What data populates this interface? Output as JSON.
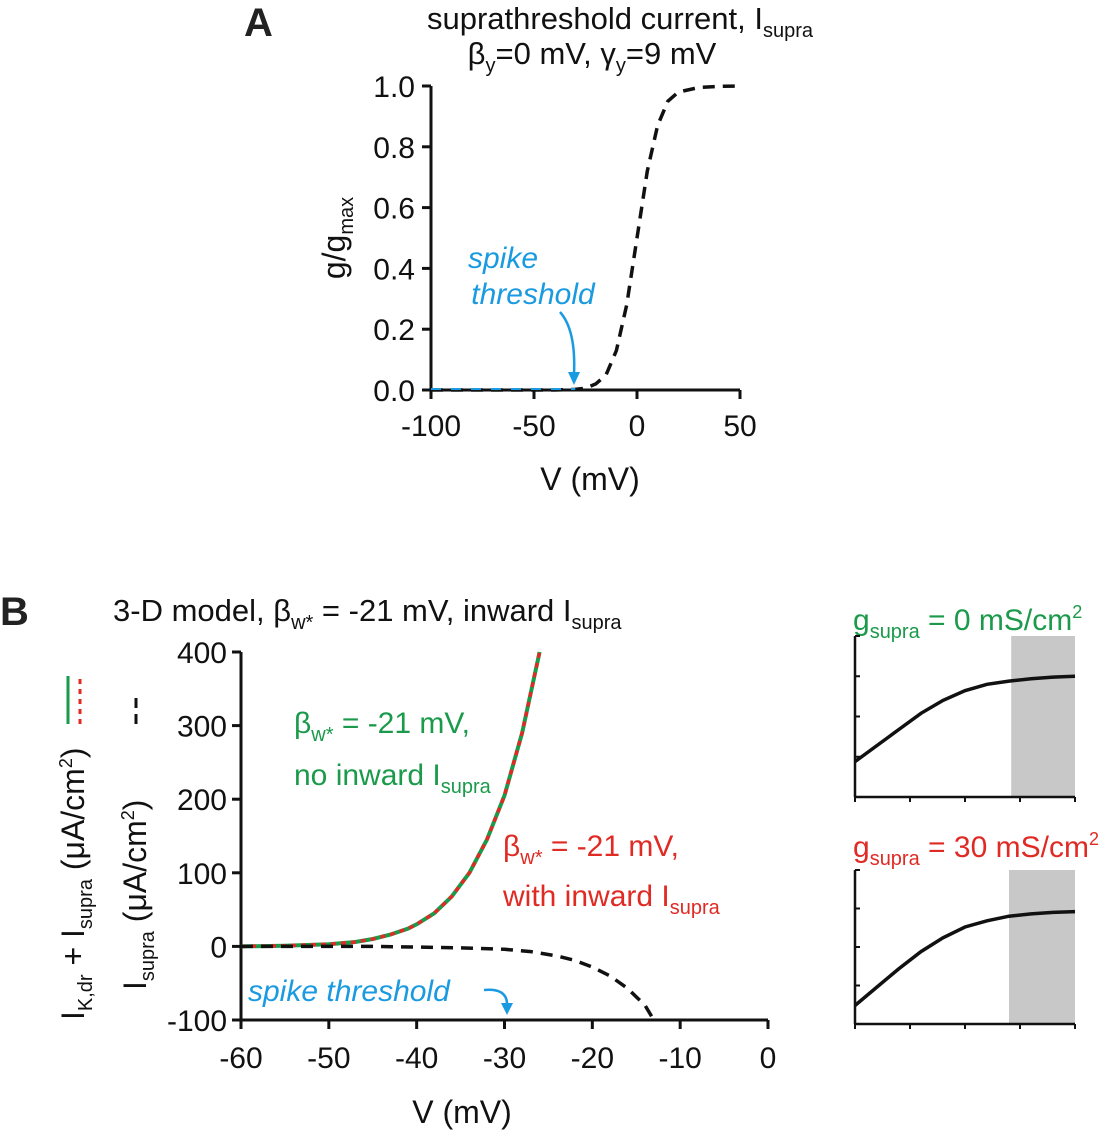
{
  "colors": {
    "blue": "#1a9ae0",
    "green": "#1a9a4a",
    "red": "#e02a24",
    "black": "#111111",
    "gray": "#c8c8c8"
  },
  "panelA": {
    "letter": "A",
    "title_line1": "suprathreshold current, I",
    "title_line1_sub": "supra",
    "title_line2_beta": "β",
    "title_line2_beta_sub": "y",
    "title_line2_mid": "=0 mV, ",
    "title_line2_gamma": "γ",
    "title_line2_gamma_sub": "y",
    "title_line2_end": "=9 mV",
    "ylabel_main": "g/g",
    "ylabel_sub": "max",
    "xlabel": "V (mV)",
    "annotation_line1": "spike",
    "annotation_line2": "threshold",
    "annotation_at_v": -30
  },
  "panelB": {
    "letter": "B",
    "title_main": "3-D model, ",
    "title_beta": "β",
    "title_beta_sub": "w*",
    "title_mid": " = -21 mV, inward I",
    "title_sub": "supra",
    "ylabel1_a": "I",
    "ylabel1_a_sub": "K,dr",
    "ylabel1_b": " + I",
    "ylabel1_b_sub": "supra",
    "ylabel1_c": " (μA/cm",
    "ylabel1_c_sup": "2",
    "ylabel1_d": ")",
    "ylabel2_a": "I",
    "ylabel2_a_sub": "supra",
    "ylabel2_b": " (μA/cm",
    "ylabel2_b_sup": "2",
    "ylabel2_c": ")",
    "xlabel": "V (mV)",
    "green_ann_beta": "β",
    "green_ann_beta_sub": "w*",
    "green_ann_line1_rest": " = -21 mV,",
    "green_ann_line2": "no inward I",
    "green_ann_line2_sub": "supra",
    "red_ann_beta": "β",
    "red_ann_beta_sub": "w*",
    "red_ann_line1_rest": " = -21 mV,",
    "red_ann_line2": "with inward I",
    "red_ann_line2_sub": "supra",
    "spike_label": "spike threshold",
    "spike_at_v": -30
  },
  "insets": {
    "top_label_g": "g",
    "top_label_sub": "supra",
    "top_label_rest": " = 0 mS/cm",
    "top_label_sup": "2",
    "bottom_label_g": "g",
    "bottom_label_sub": "supra",
    "bottom_label_rest": " = 30 mS/cm",
    "bottom_label_sup": "2"
  },
  "chart_data": [
    {
      "type": "line",
      "panel": "A",
      "title": "suprathreshold current, I_supra; β_y=0 mV, γ_y=9 mV",
      "xlabel": "V (mV)",
      "ylabel": "g/g_max",
      "xlim": [
        -100,
        50
      ],
      "ylim": [
        0,
        1.0
      ],
      "xticks": [
        -100,
        -50,
        0,
        50
      ],
      "xtick_labels": [
        "-100",
        "-50",
        "0",
        "50"
      ],
      "yticks": [
        0.0,
        0.2,
        0.4,
        0.6,
        0.8,
        1.0
      ],
      "ytick_labels": [
        "0.0",
        "0.2",
        "0.4",
        "0.6",
        "0.8",
        "1.0"
      ],
      "series": [
        {
          "style": "dashed",
          "color": "#111111",
          "x": [
            -100,
            -80,
            -60,
            -40,
            -30,
            -25,
            -20,
            -15,
            -10,
            -5,
            0,
            5,
            10,
            15,
            20,
            30,
            40,
            50
          ],
          "y": [
            0.0,
            0.0,
            0.0,
            0.0,
            0.002,
            0.006,
            0.02,
            0.05,
            0.13,
            0.28,
            0.5,
            0.72,
            0.87,
            0.95,
            0.98,
            0.995,
            0.999,
            1.0
          ]
        }
      ]
    },
    {
      "type": "line",
      "panel": "B",
      "title": "3-D model, β_w* = -21 mV, inward I_supra",
      "xlabel": "V (mV)",
      "xlim": [
        -60,
        0
      ],
      "ylim": [
        -100,
        400
      ],
      "xticks": [
        -60,
        -50,
        -40,
        -30,
        -20,
        -10,
        0
      ],
      "xtick_labels": [
        "-60",
        "-50",
        "-40",
        "-30",
        "-20",
        "-10",
        "0"
      ],
      "yticks": [
        -100,
        0,
        100,
        200,
        300,
        400
      ],
      "ytick_labels": [
        "-100",
        "0",
        "100",
        "200",
        "300",
        "400"
      ],
      "series": [
        {
          "style": "solid",
          "color": "#1a9a4a",
          "x": [
            -60,
            -55,
            -50,
            -47,
            -45,
            -43,
            -41,
            -40,
            -38,
            -36,
            -34,
            -32,
            -30,
            -28,
            -26
          ],
          "y": [
            0,
            1,
            3,
            6,
            10,
            16,
            24,
            30,
            45,
            68,
            100,
            145,
            205,
            290,
            400
          ]
        },
        {
          "style": "dotted",
          "color": "#e02a24",
          "x": [
            -60,
            -55,
            -50,
            -47,
            -45,
            -43,
            -41,
            -40,
            -38,
            -36,
            -34,
            -32,
            -30,
            -28,
            -26
          ],
          "y": [
            0,
            1,
            3,
            6,
            10,
            16,
            24,
            30,
            45,
            68,
            100,
            145,
            205,
            290,
            400
          ]
        },
        {
          "style": "dashed",
          "color": "#111111",
          "x": [
            -60,
            -50,
            -45,
            -40,
            -35,
            -30,
            -27,
            -24,
            -22,
            -20,
            -18,
            -16,
            -14,
            -13
          ],
          "y": [
            0,
            0,
            0,
            -1,
            -2,
            -4,
            -7,
            -13,
            -19,
            -28,
            -40,
            -57,
            -80,
            -100
          ]
        }
      ]
    },
    {
      "type": "line",
      "panel": "B-inset-top",
      "series": [
        {
          "color": "#111111",
          "x": [
            0,
            0.1,
            0.2,
            0.3,
            0.4,
            0.5,
            0.6,
            0.7,
            0.8,
            0.9,
            1.0
          ],
          "y": [
            0.22,
            0.32,
            0.42,
            0.52,
            0.6,
            0.66,
            0.7,
            0.72,
            0.735,
            0.745,
            0.75
          ]
        }
      ],
      "shaded_x": [
        0.71,
        1.0
      ]
    },
    {
      "type": "line",
      "panel": "B-inset-bottom",
      "series": [
        {
          "color": "#111111",
          "x": [
            0,
            0.1,
            0.2,
            0.3,
            0.4,
            0.5,
            0.6,
            0.7,
            0.8,
            0.9,
            1.0
          ],
          "y": [
            0.12,
            0.24,
            0.36,
            0.47,
            0.56,
            0.63,
            0.67,
            0.7,
            0.715,
            0.725,
            0.73
          ]
        }
      ],
      "shaded_x": [
        0.7,
        1.0
      ]
    }
  ]
}
